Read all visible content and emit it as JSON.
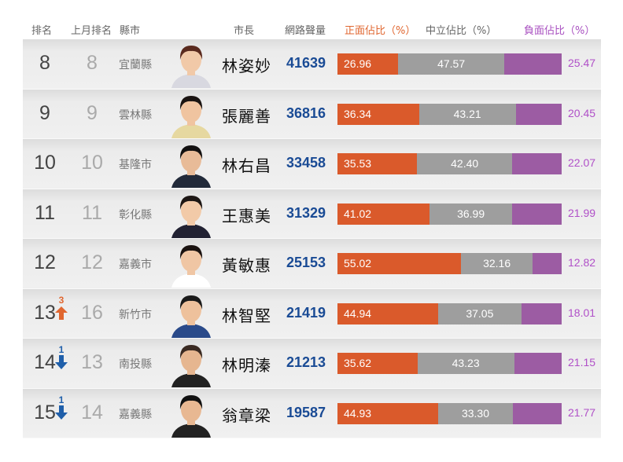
{
  "header": {
    "rank": "排名",
    "prev_rank": "上月排名",
    "county": "縣市",
    "mayor": "市長",
    "volume": "網路聲量",
    "positive": "正面佔比（%）",
    "neutral": "中立佔比（%）",
    "negative": "負面佔比（%）"
  },
  "colors": {
    "positive": "#da5a2b",
    "neutral": "#9e9e9e",
    "negative": "#9c5ca3",
    "volume": "#1a4b95",
    "up": "#e0662f",
    "down": "#1f5faa"
  },
  "rows": [
    {
      "rank": "8",
      "change": "",
      "dir": "",
      "prev": "8",
      "county": "宜蘭縣",
      "mayor": "林姿妙",
      "volume": "41639",
      "pos": "26.96",
      "neu": "47.57",
      "neg": "25.47"
    },
    {
      "rank": "9",
      "change": "",
      "dir": "",
      "prev": "9",
      "county": "雲林縣",
      "mayor": "張麗善",
      "volume": "36816",
      "pos": "36.34",
      "neu": "43.21",
      "neg": "20.45"
    },
    {
      "rank": "10",
      "change": "",
      "dir": "",
      "prev": "10",
      "county": "基隆市",
      "mayor": "林右昌",
      "volume": "33458",
      "pos": "35.53",
      "neu": "42.40",
      "neg": "22.07"
    },
    {
      "rank": "11",
      "change": "",
      "dir": "",
      "prev": "11",
      "county": "彰化縣",
      "mayor": "王惠美",
      "volume": "31329",
      "pos": "41.02",
      "neu": "36.99",
      "neg": "21.99"
    },
    {
      "rank": "12",
      "change": "",
      "dir": "",
      "prev": "12",
      "county": "嘉義市",
      "mayor": "黃敏惠",
      "volume": "25153",
      "pos": "55.02",
      "neu": "32.16",
      "neg": "12.82"
    },
    {
      "rank": "13",
      "change": "3",
      "dir": "up",
      "prev": "16",
      "county": "新竹市",
      "mayor": "林智堅",
      "volume": "21419",
      "pos": "44.94",
      "neu": "37.05",
      "neg": "18.01"
    },
    {
      "rank": "14",
      "change": "1",
      "dir": "down",
      "prev": "13",
      "county": "南投縣",
      "mayor": "林明溱",
      "volume": "21213",
      "pos": "35.62",
      "neu": "43.23",
      "neg": "21.15"
    },
    {
      "rank": "15",
      "change": "1",
      "dir": "down",
      "prev": "14",
      "county": "嘉義縣",
      "mayor": "翁章梁",
      "volume": "19587",
      "pos": "44.93",
      "neu": "33.30",
      "neg": "21.77"
    }
  ],
  "chart_data": {
    "type": "bar",
    "stacked": true,
    "orientation": "horizontal",
    "title": "",
    "categories": [
      "林姿妙 (宜蘭縣)",
      "張麗善 (雲林縣)",
      "林右昌 (基隆市)",
      "王惠美 (彰化縣)",
      "黃敏惠 (嘉義市)",
      "林智堅 (新竹市)",
      "林明溱 (南投縣)",
      "翁章梁 (嘉義縣)"
    ],
    "series": [
      {
        "name": "正面佔比（%）",
        "color": "#da5a2b",
        "values": [
          26.96,
          36.34,
          35.53,
          41.02,
          55.02,
          44.94,
          35.62,
          44.93
        ]
      },
      {
        "name": "中立佔比（%）",
        "color": "#9e9e9e",
        "values": [
          47.57,
          43.21,
          42.4,
          36.99,
          32.16,
          37.05,
          43.23,
          33.3
        ]
      },
      {
        "name": "負面佔比（%）",
        "color": "#9c5ca3",
        "values": [
          25.47,
          20.45,
          22.07,
          21.99,
          12.82,
          18.01,
          21.15,
          21.77
        ]
      }
    ],
    "table": {
      "rank": [
        8,
        9,
        10,
        11,
        12,
        13,
        14,
        15
      ],
      "prev_rank": [
        8,
        9,
        10,
        11,
        12,
        16,
        13,
        14
      ],
      "volume": [
        41639,
        36816,
        33458,
        31329,
        25153,
        21419,
        21213,
        19587
      ]
    },
    "xlim": [
      0,
      100
    ],
    "legend": "column headers"
  }
}
